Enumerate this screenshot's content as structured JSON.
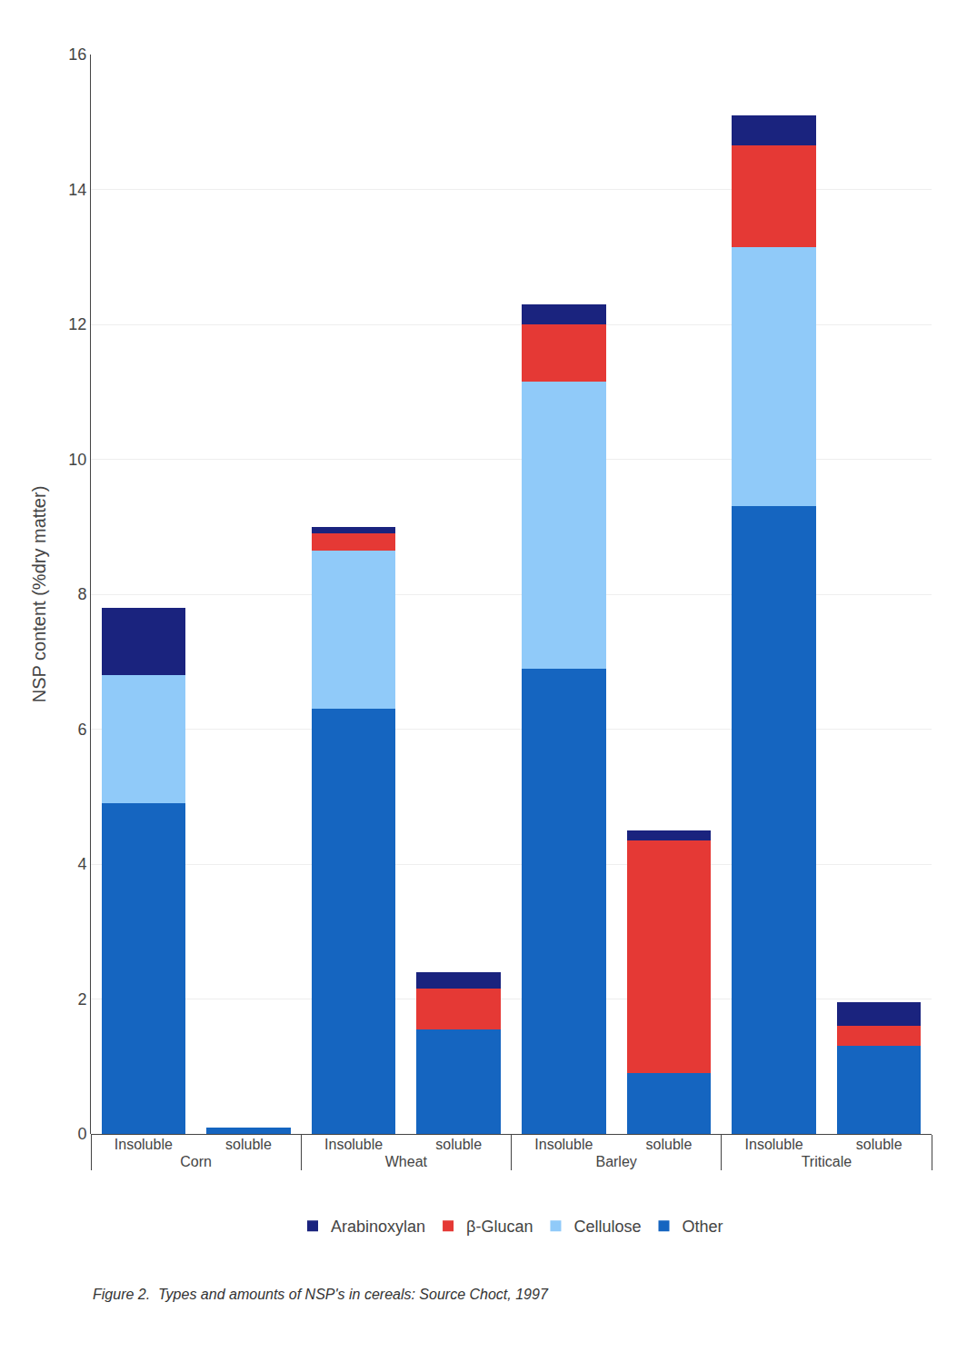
{
  "chart_data": {
    "type": "bar",
    "stacked": true,
    "ylabel": "NSP content (%dry matter)",
    "caption": "Figure 2.  Types and amounts of NSP's in cereals: Source Choct, 1997",
    "categories": [
      [
        "Corn",
        "Insoluble"
      ],
      [
        "Corn",
        "soluble"
      ],
      [
        "Wheat",
        "Insoluble"
      ],
      [
        "Wheat",
        "soluble"
      ],
      [
        "Barley",
        "Insoluble"
      ],
      [
        "Barley",
        "soluble"
      ],
      [
        "Triticale",
        "Insoluble"
      ],
      [
        "Triticale",
        "soluble"
      ]
    ],
    "series": [
      {
        "name": "Other",
        "color": "#1565C0",
        "values": [
          4.9,
          0.1,
          6.3,
          1.55,
          6.9,
          0.9,
          9.3,
          1.3
        ]
      },
      {
        "name": "Cellulose",
        "color": "#90CAF9",
        "values": [
          1.9,
          0.0,
          2.35,
          0.0,
          4.25,
          0.0,
          3.85,
          0.0
        ]
      },
      {
        "name": "β-Glucan",
        "color": "#E53935",
        "values": [
          0.0,
          0.0,
          0.25,
          0.6,
          0.85,
          3.45,
          1.5,
          0.3
        ]
      },
      {
        "name": "Arabinoxylan",
        "color": "#1A237E",
        "values": [
          1.0,
          0.0,
          0.1,
          0.25,
          0.3,
          0.15,
          0.45,
          0.35
        ]
      }
    ],
    "ylim": [
      0,
      16
    ],
    "yticks": [
      0,
      2,
      4,
      6,
      8,
      10,
      12,
      14,
      16
    ],
    "grid": true,
    "legend": "bottom"
  }
}
